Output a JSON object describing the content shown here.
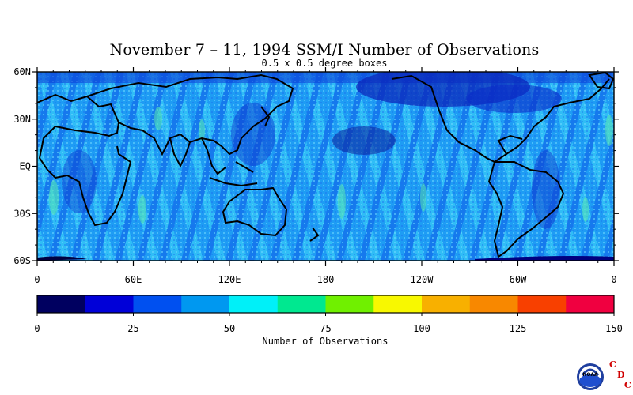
{
  "title": "November 7 – 11, 1994 SSM/I Number of Observations",
  "subtitle": "0.5 x 0.5 degree boxes",
  "lat_labels": [
    "60N",
    "30N",
    "EQ",
    "30S",
    "60S"
  ],
  "lon_labels": [
    "0",
    "60E",
    "120E",
    "180",
    "120W",
    "60W",
    "0"
  ],
  "colorbar": {
    "title": "Number of Observations",
    "tick_labels": [
      "0",
      "25",
      "50",
      "75",
      "100",
      "125",
      "150"
    ],
    "colors": [
      "#000060",
      "#0000d8",
      "#0050f0",
      "#0098f0",
      "#00f0f8",
      "#00e890",
      "#70f000",
      "#f8f800",
      "#f8b000",
      "#f88800",
      "#f84000",
      "#f00040"
    ]
  },
  "logo": {
    "letters": [
      "C",
      "D",
      "C"
    ],
    "emblem_text": "NOAA",
    "letter_color": "#d00000"
  }
}
